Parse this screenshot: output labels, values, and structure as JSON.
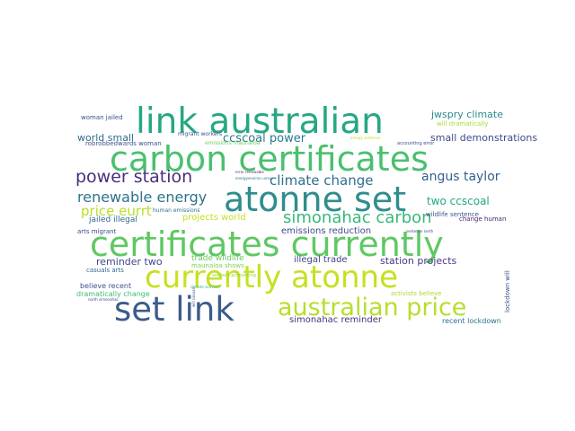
{
  "words": [
    {
      "text": "link australian",
      "color": "#26a784"
    },
    {
      "text": "carbon certificates",
      "color": "#4ac06e"
    },
    {
      "text": "atonne set",
      "color": "#2f8d8d"
    },
    {
      "text": "certificates currently",
      "color": "#5fc863"
    },
    {
      "text": "currently atonne",
      "color": "#c7e020"
    },
    {
      "text": "set link",
      "color": "#3b5c8b"
    },
    {
      "text": "australian price",
      "color": "#b7de2c"
    },
    {
      "text": "power station",
      "color": "#472f7d"
    },
    {
      "text": "simonahac carbon",
      "color": "#38b978"
    },
    {
      "text": "renewable energy",
      "color": "#2c728e"
    },
    {
      "text": "climate change",
      "color": "#2e6f8e"
    },
    {
      "text": "price eurrt",
      "color": "#b8de29"
    },
    {
      "text": "angus taylor",
      "color": "#35608d"
    },
    {
      "text": "ccscoal power",
      "color": "#2a788e"
    },
    {
      "text": "world small",
      "color": "#2e6e8e"
    },
    {
      "text": "two ccscoal",
      "color": "#22a884"
    },
    {
      "text": "small demonstrations",
      "color": "#3e4a89"
    },
    {
      "text": "jwspry climate",
      "color": "#2a8a8d"
    },
    {
      "text": "reminder two",
      "color": "#3f4788"
    },
    {
      "text": "projects world",
      "color": "#c8e020"
    },
    {
      "text": "station projects",
      "color": "#443983"
    },
    {
      "text": "simonahac reminder",
      "color": "#46327e"
    },
    {
      "text": "illegal trade",
      "color": "#414487"
    },
    {
      "text": "jailed illegal",
      "color": "#31688e"
    },
    {
      "text": "trade wildlife",
      "color": "#65cb5e"
    },
    {
      "text": "emissions reduction",
      "color": "#3e4c8a"
    },
    {
      "text": "recent lockdown",
      "color": "#2d708e"
    },
    {
      "text": "believe recent",
      "color": "#3b528b"
    },
    {
      "text": "dramatically change",
      "color": "#3dbc74"
    },
    {
      "text": "activists believe",
      "color": "#a5db36"
    },
    {
      "text": "maunaloa shows",
      "color": "#7ad151"
    },
    {
      "text": "casuals arts",
      "color": "#31688e"
    },
    {
      "text": "arts migrant",
      "color": "#3f4788"
    },
    {
      "text": "wildlife sentence",
      "color": "#3b528b"
    },
    {
      "text": "change human",
      "color": "#482475"
    },
    {
      "text": "human emissions",
      "color": "#2c718e"
    },
    {
      "text": "woman jailed",
      "color": "#3b528b"
    },
    {
      "text": "migrant workers",
      "color": "#3b528b"
    },
    {
      "text": "robrobbedwards woman",
      "color": "#3b528b"
    },
    {
      "text": "emissions maunaloa",
      "color": "#6ece58"
    },
    {
      "text": "will dramatically",
      "color": "#a8db34"
    },
    {
      "text": "accounting error",
      "color": "#3e4a89"
    },
    {
      "text": "lockdown will",
      "color": "#3b528b"
    },
    {
      "text": "error renewable",
      "color": "#46307e"
    },
    {
      "text": "energyenviron unsw",
      "color": "#2c738e"
    },
    {
      "text": "workers accounting",
      "color": "#8fd744"
    },
    {
      "text": "climate activists",
      "color": "#35b779"
    },
    {
      "text": "energy sentence",
      "color": "#b5de2b"
    },
    {
      "text": "north simonahac",
      "color": "#3e4989"
    },
    {
      "text": "sentence north",
      "color": "#3e4989"
    },
    {
      "text": "will casuals",
      "color": "#3b528b"
    }
  ]
}
